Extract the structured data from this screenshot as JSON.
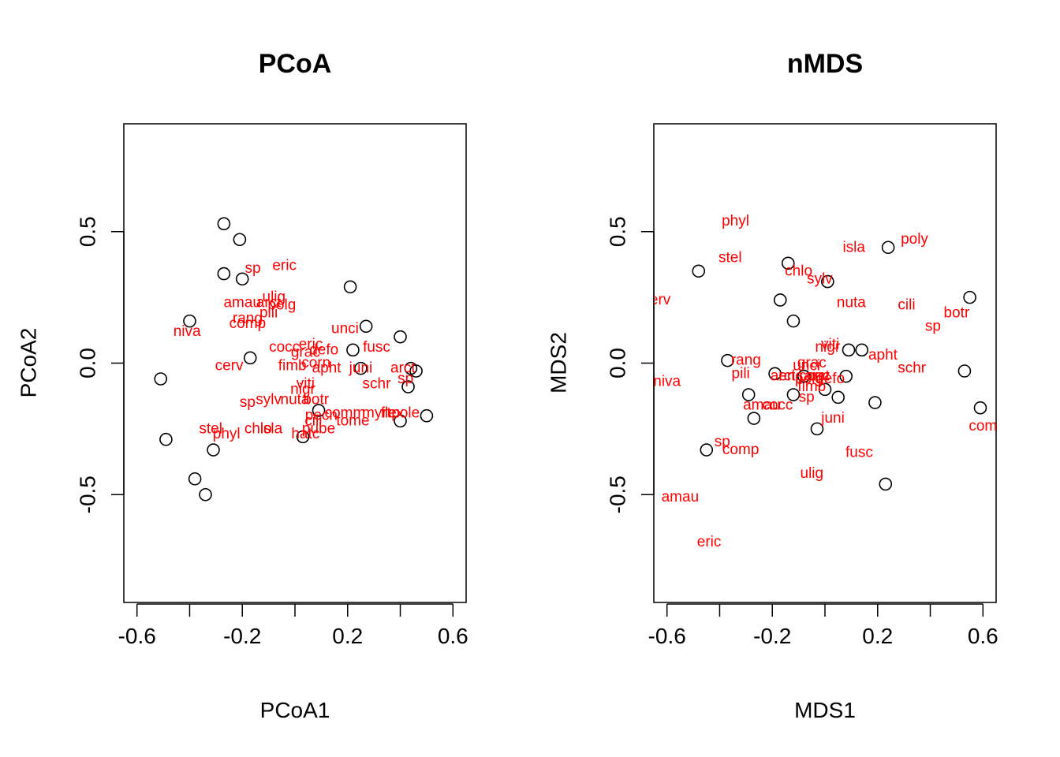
{
  "chart_data": [
    {
      "type": "scatter",
      "title": "PCoA",
      "xlabel": "PCoA1",
      "ylabel": "PCoA2",
      "xlim": [
        -0.65,
        0.65
      ],
      "ylim": [
        -0.91,
        0.91
      ],
      "xticks": [
        -0.6,
        -0.4,
        -0.2,
        0.0,
        0.2,
        0.4,
        0.6
      ],
      "xtick_labels": [
        "-0.6",
        "",
        "-0.2",
        "",
        "0.2",
        "",
        "0.6"
      ],
      "yticks": [
        -0.5,
        0.0,
        0.5
      ],
      "ytick_labels": [
        "-0.5",
        "0.0",
        "0.5"
      ],
      "marker_color": "#000000",
      "label_color": "#ff0000",
      "sites": [
        [
          -0.27,
          0.53
        ],
        [
          -0.21,
          0.47
        ],
        [
          -0.27,
          0.34
        ],
        [
          -0.2,
          0.32
        ],
        [
          -0.4,
          0.16
        ],
        [
          0.21,
          0.29
        ],
        [
          0.27,
          0.14
        ],
        [
          0.4,
          0.1
        ],
        [
          0.22,
          0.05
        ],
        [
          -0.17,
          0.02
        ],
        [
          -0.51,
          -0.06
        ],
        [
          0.44,
          -0.02
        ],
        [
          0.46,
          -0.03
        ],
        [
          0.25,
          -0.02
        ],
        [
          0.43,
          -0.09
        ],
        [
          0.5,
          -0.2
        ],
        [
          0.4,
          -0.22
        ],
        [
          0.09,
          -0.18
        ],
        [
          -0.49,
          -0.29
        ],
        [
          -0.31,
          -0.33
        ],
        [
          0.03,
          -0.28
        ],
        [
          -0.38,
          -0.44
        ],
        [
          -0.34,
          -0.5
        ]
      ],
      "species": [
        {
          "label": "sp",
          "x": -0.16,
          "y": 0.36
        },
        {
          "label": "eric",
          "x": -0.04,
          "y": 0.37
        },
        {
          "label": "ulig",
          "x": -0.08,
          "y": 0.25
        },
        {
          "label": "amau",
          "x": -0.2,
          "y": 0.23
        },
        {
          "label": "arct",
          "x": -0.1,
          "y": 0.23
        },
        {
          "label": "polg",
          "x": -0.05,
          "y": 0.22
        },
        {
          "label": "pili",
          "x": -0.1,
          "y": 0.19
        },
        {
          "label": "rang",
          "x": -0.18,
          "y": 0.17
        },
        {
          "label": "comp",
          "x": -0.18,
          "y": 0.15
        },
        {
          "label": "niva",
          "x": -0.41,
          "y": 0.12
        },
        {
          "label": "unci",
          "x": 0.19,
          "y": 0.13
        },
        {
          "label": "fusc",
          "x": 0.31,
          "y": 0.06
        },
        {
          "label": "eric",
          "x": 0.06,
          "y": 0.07
        },
        {
          "label": "cocc",
          "x": -0.04,
          "y": 0.06
        },
        {
          "label": "defo",
          "x": 0.11,
          "y": 0.05
        },
        {
          "label": "grac",
          "x": 0.04,
          "y": 0.04
        },
        {
          "label": "cerv",
          "x": -0.25,
          "y": -0.01
        },
        {
          "label": "fimb",
          "x": -0.01,
          "y": -0.01
        },
        {
          "label": "corn",
          "x": 0.08,
          "y": 0.0
        },
        {
          "label": "apht",
          "x": 0.12,
          "y": -0.02
        },
        {
          "label": "juni",
          "x": 0.25,
          "y": -0.02
        },
        {
          "label": "arct",
          "x": 0.41,
          "y": -0.02
        },
        {
          "label": "schr",
          "x": 0.31,
          "y": -0.08
        },
        {
          "label": "sp",
          "x": 0.42,
          "y": -0.06
        },
        {
          "label": "viti",
          "x": 0.04,
          "y": -0.08
        },
        {
          "label": "nigr",
          "x": 0.03,
          "y": -0.1
        },
        {
          "label": "sylv",
          "x": -0.1,
          "y": -0.14
        },
        {
          "label": "nuta",
          "x": 0.0,
          "y": -0.14
        },
        {
          "label": "botr",
          "x": 0.08,
          "y": -0.14
        },
        {
          "label": "sp",
          "x": -0.18,
          "y": -0.15
        },
        {
          "label": "comm",
          "x": 0.19,
          "y": -0.19
        },
        {
          "label": "myrt",
          "x": 0.31,
          "y": -0.19
        },
        {
          "label": "flex",
          "x": 0.37,
          "y": -0.19
        },
        {
          "label": "pole",
          "x": 0.42,
          "y": -0.19
        },
        {
          "label": "pecn",
          "x": 0.1,
          "y": -0.2
        },
        {
          "label": "tome",
          "x": 0.22,
          "y": -0.22
        },
        {
          "label": "cili",
          "x": 0.07,
          "y": -0.22
        },
        {
          "label": "stel",
          "x": -0.32,
          "y": -0.25
        },
        {
          "label": "chlo",
          "x": -0.14,
          "y": -0.25
        },
        {
          "label": "isla",
          "x": -0.09,
          "y": -0.25
        },
        {
          "label": "phyl",
          "x": -0.26,
          "y": -0.27
        },
        {
          "label": "pube",
          "x": 0.09,
          "y": -0.25
        },
        {
          "label": "hatc",
          "x": 0.04,
          "y": -0.27
        }
      ]
    },
    {
      "type": "scatter",
      "title": "nMDS",
      "xlabel": "MDS1",
      "ylabel": "MDS2",
      "xlim": [
        -0.65,
        0.65
      ],
      "ylim": [
        -0.91,
        0.91
      ],
      "xticks": [
        -0.6,
        -0.4,
        -0.2,
        0.0,
        0.2,
        0.4,
        0.6
      ],
      "xtick_labels": [
        "-0.6",
        "",
        "-0.2",
        "",
        "0.2",
        "",
        "0.6"
      ],
      "yticks": [
        -0.5,
        0.0,
        0.5
      ],
      "ytick_labels": [
        "-0.5",
        "0.0",
        "0.5"
      ],
      "marker_color": "#000000",
      "label_color": "#ff0000",
      "sites": [
        [
          0.24,
          0.44
        ],
        [
          -0.14,
          0.38
        ],
        [
          0.01,
          0.31
        ],
        [
          -0.48,
          0.35
        ],
        [
          -0.17,
          0.24
        ],
        [
          -0.12,
          0.16
        ],
        [
          0.55,
          0.25
        ],
        [
          0.09,
          0.05
        ],
        [
          0.14,
          0.05
        ],
        [
          -0.37,
          0.01
        ],
        [
          -0.19,
          -0.04
        ],
        [
          -0.08,
          -0.05
        ],
        [
          0.08,
          -0.05
        ],
        [
          0.53,
          -0.03
        ],
        [
          -0.29,
          -0.12
        ],
        [
          -0.12,
          -0.12
        ],
        [
          0.0,
          -0.1
        ],
        [
          0.05,
          -0.13
        ],
        [
          0.19,
          -0.15
        ],
        [
          0.59,
          -0.17
        ],
        [
          -0.27,
          -0.21
        ],
        [
          -0.03,
          -0.25
        ],
        [
          -0.45,
          -0.33
        ],
        [
          0.23,
          -0.46
        ]
      ],
      "species": [
        {
          "label": "phyl",
          "x": -0.34,
          "y": 0.54
        },
        {
          "label": "poly",
          "x": 0.34,
          "y": 0.47
        },
        {
          "label": "isla",
          "x": 0.11,
          "y": 0.44
        },
        {
          "label": "stel",
          "x": -0.36,
          "y": 0.4
        },
        {
          "label": "chlo",
          "x": -0.1,
          "y": 0.35
        },
        {
          "label": "sylv",
          "x": -0.02,
          "y": 0.32
        },
        {
          "label": "cerv",
          "x": -0.64,
          "y": 0.24
        },
        {
          "label": "nuta",
          "x": 0.1,
          "y": 0.23
        },
        {
          "label": "cili",
          "x": 0.31,
          "y": 0.22
        },
        {
          "label": "botr",
          "x": 0.5,
          "y": 0.19
        },
        {
          "label": "sp",
          "x": 0.41,
          "y": 0.14
        },
        {
          "label": "viti",
          "x": 0.02,
          "y": 0.07
        },
        {
          "label": "nigr",
          "x": 0.01,
          "y": 0.06
        },
        {
          "label": "apht",
          "x": 0.22,
          "y": 0.03
        },
        {
          "label": "rang",
          "x": -0.3,
          "y": 0.01
        },
        {
          "label": "grac",
          "x": -0.05,
          "y": 0.0
        },
        {
          "label": "unci",
          "x": -0.07,
          "y": -0.01
        },
        {
          "label": "schr",
          "x": 0.33,
          "y": -0.02
        },
        {
          "label": "pili",
          "x": -0.32,
          "y": -0.04
        },
        {
          "label": "arct",
          "x": -0.16,
          "y": -0.05
        },
        {
          "label": "eric",
          "x": -0.13,
          "y": -0.05
        },
        {
          "label": "cocc",
          "x": -0.04,
          "y": -0.05
        },
        {
          "label": "arct",
          "x": -0.03,
          "y": -0.05
        },
        {
          "label": "polg",
          "x": -0.06,
          "y": -0.06
        },
        {
          "label": "defo",
          "x": 0.02,
          "y": -0.06
        },
        {
          "label": "niva",
          "x": -0.6,
          "y": -0.07
        },
        {
          "label": "fimb",
          "x": -0.05,
          "y": -0.09
        },
        {
          "label": "sp",
          "x": -0.07,
          "y": -0.13
        },
        {
          "label": "amau",
          "x": -0.24,
          "y": -0.16
        },
        {
          "label": "cocc",
          "x": -0.18,
          "y": -0.16
        },
        {
          "label": "juni",
          "x": 0.03,
          "y": -0.21
        },
        {
          "label": "com",
          "x": 0.6,
          "y": -0.24
        },
        {
          "label": "sp",
          "x": -0.39,
          "y": -0.3
        },
        {
          "label": "comp",
          "x": -0.32,
          "y": -0.33
        },
        {
          "label": "fusc",
          "x": 0.13,
          "y": -0.34
        },
        {
          "label": "ulig",
          "x": -0.05,
          "y": -0.42
        },
        {
          "label": "amau",
          "x": -0.55,
          "y": -0.51
        },
        {
          "label": "eric",
          "x": -0.44,
          "y": -0.68
        }
      ]
    }
  ]
}
